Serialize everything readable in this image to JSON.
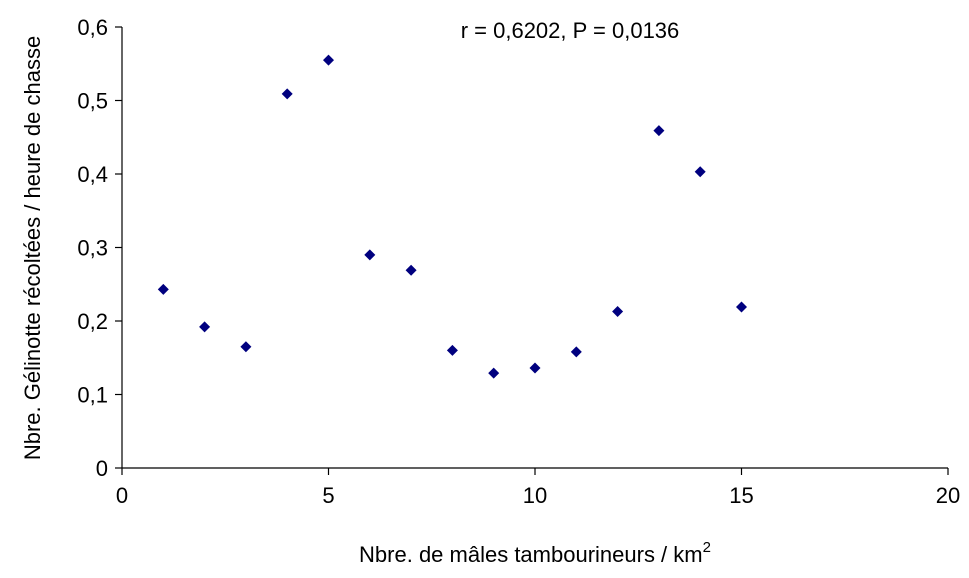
{
  "chart_data": {
    "type": "scatter",
    "title": "",
    "annotation": "r = 0,6202, P = 0,0136",
    "xlabel": "Nbre. de mâles tambourineurs / km",
    "xlabel_superscript": "2",
    "ylabel": "Nbre. Gélinotte récoltées / heure de chasse",
    "xlim": [
      0,
      20
    ],
    "ylim": [
      0,
      0.6
    ],
    "x_ticks": [
      0,
      5,
      10,
      15,
      20
    ],
    "x_tick_labels": [
      "0",
      "5",
      "10",
      "15",
      "20"
    ],
    "y_ticks": [
      0,
      0.1,
      0.2,
      0.3,
      0.4,
      0.5,
      0.6
    ],
    "y_tick_labels": [
      "0",
      "0,1",
      "0,2",
      "0,3",
      "0,4",
      "0,5",
      "0,6"
    ],
    "grid": false,
    "marker_color": "#00007f",
    "points": [
      {
        "x": 1,
        "y": 0.243
      },
      {
        "x": 2,
        "y": 0.192
      },
      {
        "x": 3,
        "y": 0.165
      },
      {
        "x": 4,
        "y": 0.509
      },
      {
        "x": 5,
        "y": 0.555
      },
      {
        "x": 6,
        "y": 0.29
      },
      {
        "x": 7,
        "y": 0.269
      },
      {
        "x": 8,
        "y": 0.16
      },
      {
        "x": 9,
        "y": 0.129
      },
      {
        "x": 10,
        "y": 0.136
      },
      {
        "x": 11,
        "y": 0.158
      },
      {
        "x": 12,
        "y": 0.213
      },
      {
        "x": 13,
        "y": 0.459
      },
      {
        "x": 14,
        "y": 0.403
      },
      {
        "x": 15,
        "y": 0.219
      }
    ]
  }
}
